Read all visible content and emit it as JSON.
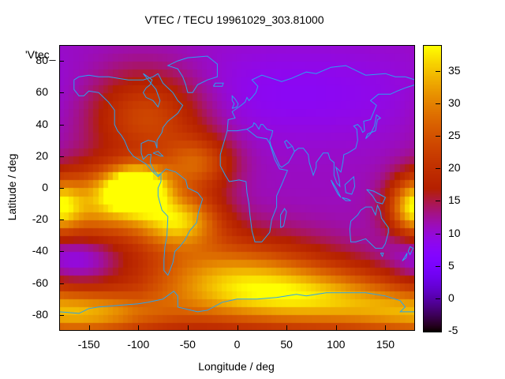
{
  "chart_data": {
    "type": "heatmap",
    "title": "VTEC / TECU 19961029_303.81000",
    "xlabel": "Longitude / deg",
    "ylabel": "Latitude / deg",
    "key_label": "'Vtec_",
    "xlim": [
      -180,
      180
    ],
    "ylim": [
      -90,
      90
    ],
    "xticks": [
      -150,
      -100,
      -50,
      0,
      50,
      100,
      150
    ],
    "yticks": [
      -80,
      -60,
      -40,
      -20,
      0,
      20,
      40,
      60,
      80
    ],
    "colorbar": {
      "min": -5,
      "max": 39,
      "ticks": [
        -5,
        0,
        5,
        10,
        15,
        20,
        25,
        30,
        35
      ],
      "palette": "gnuplot black-blue-violet-red-orange-yellow"
    },
    "grid": false,
    "field_features": [
      {
        "type": "background",
        "value": 11
      },
      {
        "type": "peak",
        "lon": -100,
        "lat": 0,
        "value": 31,
        "sigma_lon": 22,
        "sigma_lat": 10
      },
      {
        "type": "peak",
        "lon": -60,
        "lat": -20,
        "value": 23,
        "sigma_lon": 30,
        "sigma_lat": 12
      },
      {
        "type": "peak",
        "lon": -140,
        "lat": -10,
        "value": 20,
        "sigma_lon": 35,
        "sigma_lat": 16
      },
      {
        "type": "peak",
        "lon": 178,
        "lat": -12,
        "value": 19,
        "sigma_lon": 16,
        "sigma_lat": 12
      },
      {
        "type": "peak",
        "lon": 80,
        "lat": -70,
        "value": 20,
        "sigma_lon": 80,
        "sigma_lat": 14
      },
      {
        "type": "peak",
        "lon": -10,
        "lat": -55,
        "value": 18,
        "sigma_lon": 70,
        "sigma_lat": 18
      },
      {
        "type": "peak",
        "lon": -150,
        "lat": -80,
        "value": 18,
        "sigma_lon": 60,
        "sigma_lat": 10
      },
      {
        "type": "peak",
        "lon": -40,
        "lat": 15,
        "value": 14,
        "sigma_lon": 25,
        "sigma_lat": 12
      },
      {
        "type": "peak",
        "lon": -90,
        "lat": 45,
        "value": 13,
        "sigma_lon": 40,
        "sigma_lat": 20
      },
      {
        "type": "trough",
        "lon": -160,
        "lat": -45,
        "value": -6,
        "sigma_lon": 30,
        "sigma_lat": 12
      },
      {
        "type": "trough",
        "lon": 60,
        "lat": 60,
        "value": -3,
        "sigma_lon": 90,
        "sigma_lat": 20
      }
    ],
    "coastlines": [
      [
        [
          -165,
          68
        ],
        [
          -160,
          70
        ],
        [
          -150,
          71
        ],
        [
          -140,
          70
        ],
        [
          -130,
          70
        ],
        [
          -120,
          69
        ],
        [
          -110,
          68
        ],
        [
          -95,
          68
        ],
        [
          -85,
          70
        ],
        [
          -80,
          72
        ]
      ],
      [
        [
          -80,
          72
        ],
        [
          -75,
          66
        ],
        [
          -65,
          60
        ],
        [
          -60,
          55
        ],
        [
          -55,
          52
        ],
        [
          -60,
          47
        ],
        [
          -66,
          44
        ],
        [
          -70,
          42
        ],
        [
          -75,
          38
        ],
        [
          -76,
          35
        ],
        [
          -81,
          30
        ],
        [
          -81,
          25
        ],
        [
          -83,
          29
        ],
        [
          -90,
          30
        ],
        [
          -97,
          28
        ],
        [
          -97,
          22
        ],
        [
          -95,
          18
        ],
        [
          -90,
          21
        ],
        [
          -87,
          21
        ],
        [
          -88,
          16
        ],
        [
          -84,
          11
        ],
        [
          -80,
          8
        ],
        [
          -77,
          9
        ],
        [
          -80,
          7
        ]
      ],
      [
        [
          -80,
          7
        ],
        [
          -85,
          10
        ],
        [
          -92,
          15
        ],
        [
          -105,
          20
        ],
        [
          -110,
          24
        ],
        [
          -114,
          30
        ],
        [
          -117,
          33
        ],
        [
          -121,
          36
        ],
        [
          -124,
          40
        ],
        [
          -124,
          46
        ],
        [
          -124,
          49
        ],
        [
          -130,
          54
        ],
        [
          -135,
          57
        ],
        [
          -140,
          60
        ],
        [
          -150,
          61
        ],
        [
          -155,
          58
        ],
        [
          -160,
          58
        ],
        [
          -165,
          62
        ],
        [
          -165,
          68
        ]
      ],
      [
        [
          -77,
          9
        ],
        [
          -72,
          12
        ],
        [
          -62,
          10
        ],
        [
          -52,
          5
        ],
        [
          -50,
          0
        ],
        [
          -40,
          -3
        ],
        [
          -35,
          -7
        ],
        [
          -39,
          -15
        ],
        [
          -41,
          -22
        ],
        [
          -48,
          -27
        ],
        [
          -53,
          -33
        ],
        [
          -58,
          -37
        ],
        [
          -63,
          -40
        ],
        [
          -65,
          -47
        ],
        [
          -68,
          -52
        ],
        [
          -70,
          -55
        ],
        [
          -74,
          -52
        ],
        [
          -74,
          -45
        ],
        [
          -73,
          -37
        ],
        [
          -71,
          -30
        ],
        [
          -70,
          -18
        ],
        [
          -76,
          -14
        ],
        [
          -80,
          -5
        ],
        [
          -80,
          0
        ],
        [
          -77,
          4
        ],
        [
          -77,
          9
        ]
      ],
      [
        [
          -10,
          36
        ],
        [
          -17,
          21
        ],
        [
          -17,
          14
        ],
        [
          -12,
          8
        ],
        [
          -8,
          4
        ],
        [
          2,
          5
        ],
        [
          9,
          4
        ],
        [
          10,
          -3
        ],
        [
          12,
          -10
        ],
        [
          13,
          -17
        ],
        [
          15,
          -27
        ],
        [
          18,
          -34
        ],
        [
          25,
          -34
        ],
        [
          33,
          -28
        ],
        [
          35,
          -20
        ],
        [
          40,
          -12
        ],
        [
          40,
          -5
        ],
        [
          45,
          2
        ],
        [
          51,
          11
        ],
        [
          43,
          12
        ],
        [
          38,
          18
        ],
        [
          33,
          28
        ],
        [
          30,
          31
        ],
        [
          20,
          32
        ],
        [
          10,
          37
        ],
        [
          0,
          36
        ],
        [
          -10,
          36
        ]
      ],
      [
        [
          -10,
          36
        ],
        [
          -9,
          43
        ],
        [
          -2,
          44
        ],
        [
          -5,
          48
        ],
        [
          2,
          51
        ],
        [
          8,
          54
        ],
        [
          10,
          57
        ],
        [
          12,
          55
        ],
        [
          15,
          57
        ],
        [
          19,
          60
        ],
        [
          21,
          64
        ],
        [
          15,
          68
        ],
        [
          25,
          71
        ],
        [
          40,
          68
        ],
        [
          45,
          67
        ],
        [
          55,
          69
        ],
        [
          70,
          73
        ],
        [
          80,
          72
        ],
        [
          95,
          76
        ],
        [
          110,
          77
        ],
        [
          130,
          71
        ],
        [
          150,
          72
        ],
        [
          160,
          70
        ],
        [
          170,
          70
        ],
        [
          180,
          68
        ]
      ],
      [
        [
          10,
          37
        ],
        [
          13,
          38
        ],
        [
          16,
          39
        ],
        [
          17,
          41
        ],
        [
          19,
          40
        ],
        [
          22,
          37
        ],
        [
          24,
          40
        ],
        [
          26,
          40
        ],
        [
          30,
          37
        ],
        [
          36,
          36
        ],
        [
          35,
          33
        ],
        [
          33,
          30
        ],
        [
          34,
          27
        ],
        [
          38,
          21
        ],
        [
          43,
          14
        ],
        [
          45,
          13
        ],
        [
          52,
          16
        ],
        [
          58,
          23
        ],
        [
          56,
          26
        ],
        [
          50,
          30
        ],
        [
          48,
          29
        ],
        [
          51,
          25
        ],
        [
          55,
          26
        ]
      ],
      [
        [
          58,
          23
        ],
        [
          62,
          25
        ],
        [
          67,
          25
        ],
        [
          72,
          21
        ],
        [
          73,
          16
        ],
        [
          77,
          8
        ],
        [
          80,
          13
        ],
        [
          80,
          16
        ],
        [
          87,
          22
        ],
        [
          92,
          22
        ],
        [
          94,
          18
        ],
        [
          98,
          16
        ],
        [
          98,
          8
        ],
        [
          101,
          3
        ],
        [
          104,
          1
        ],
        [
          103,
          6
        ],
        [
          100,
          13
        ],
        [
          105,
          10
        ],
        [
          107,
          16
        ],
        [
          108,
          21
        ],
        [
          112,
          22
        ],
        [
          120,
          25
        ],
        [
          122,
          30
        ],
        [
          121,
          37
        ],
        [
          118,
          39
        ],
        [
          122,
          40
        ],
        [
          125,
          38
        ],
        [
          127,
          35
        ],
        [
          129,
          36
        ],
        [
          128,
          42
        ],
        [
          135,
          43
        ],
        [
          141,
          52
        ],
        [
          135,
          55
        ],
        [
          143,
          59
        ],
        [
          155,
          59
        ],
        [
          162,
          61
        ],
        [
          170,
          63
        ],
        [
          180,
          65
        ]
      ],
      [
        [
          115,
          -21
        ],
        [
          114,
          -26
        ],
        [
          115,
          -34
        ],
        [
          120,
          -34
        ],
        [
          130,
          -32
        ],
        [
          135,
          -35
        ],
        [
          140,
          -38
        ],
        [
          147,
          -38
        ],
        [
          150,
          -35
        ],
        [
          153,
          -28
        ],
        [
          153,
          -25
        ],
        [
          146,
          -19
        ],
        [
          145,
          -15
        ],
        [
          142,
          -11
        ],
        [
          140,
          -17
        ],
        [
          136,
          -12
        ],
        [
          130,
          -12
        ],
        [
          125,
          -14
        ],
        [
          122,
          -17
        ],
        [
          115,
          -21
        ]
      ],
      [
        [
          -180,
          -78
        ],
        [
          -160,
          -79
        ],
        [
          -150,
          -76
        ],
        [
          -140,
          -75
        ],
        [
          -120,
          -74
        ],
        [
          -100,
          -73
        ],
        [
          -90,
          -72
        ],
        [
          -75,
          -70
        ],
        [
          -64,
          -65
        ],
        [
          -60,
          -68
        ],
        [
          -60,
          -75
        ],
        [
          -40,
          -78
        ],
        [
          -30,
          -77
        ],
        [
          -15,
          -72
        ],
        [
          0,
          -70
        ],
        [
          20,
          -70
        ],
        [
          40,
          -69
        ],
        [
          60,
          -67
        ],
        [
          70,
          -68
        ],
        [
          90,
          -66
        ],
        [
          110,
          -66
        ],
        [
          130,
          -66
        ],
        [
          150,
          -68
        ],
        [
          165,
          -71
        ],
        [
          170,
          -75
        ],
        [
          165,
          -78
        ],
        [
          180,
          -78
        ]
      ],
      [
        [
          -50,
          60
        ],
        [
          -45,
          60
        ],
        [
          -40,
          65
        ],
        [
          -30,
          68
        ],
        [
          -20,
          70
        ],
        [
          -20,
          78
        ],
        [
          -30,
          83
        ],
        [
          -50,
          82
        ],
        [
          -60,
          80
        ],
        [
          -70,
          77
        ],
        [
          -60,
          75
        ],
        [
          -55,
          70
        ],
        [
          -52,
          65
        ],
        [
          -50,
          60
        ]
      ],
      [
        [
          -95,
          72
        ],
        [
          -90,
          68
        ],
        [
          -82,
          62
        ],
        [
          -78,
          55
        ],
        [
          -80,
          51
        ],
        [
          -85,
          55
        ],
        [
          -92,
          57
        ],
        [
          -95,
          60
        ],
        [
          -92,
          63
        ],
        [
          -88,
          65
        ],
        [
          -86,
          68
        ],
        [
          -95,
          72
        ]
      ],
      [
        [
          -5,
          50
        ],
        [
          0,
          51
        ],
        [
          1,
          53
        ],
        [
          -2,
          56
        ],
        [
          -5,
          58
        ],
        [
          -5,
          55
        ],
        [
          -3,
          53
        ],
        [
          -5,
          50
        ]
      ],
      [
        [
          130,
          31
        ],
        [
          132,
          34
        ],
        [
          136,
          35
        ],
        [
          140,
          36
        ],
        [
          141,
          40
        ],
        [
          142,
          43
        ],
        [
          145,
          44
        ],
        [
          141,
          46
        ],
        [
          139,
          39
        ],
        [
          135,
          34
        ],
        [
          130,
          31
        ]
      ],
      [
        [
          44,
          -25
        ],
        [
          47,
          -24
        ],
        [
          50,
          -15
        ],
        [
          48,
          -13
        ],
        [
          44,
          -17
        ],
        [
          44,
          -25
        ]
      ],
      [
        [
          95,
          5
        ],
        [
          100,
          0
        ],
        [
          105,
          -6
        ],
        [
          102,
          -4
        ],
        [
          97,
          2
        ],
        [
          95,
          5
        ]
      ],
      [
        [
          106,
          -6
        ],
        [
          112,
          -7
        ],
        [
          115,
          -8
        ],
        [
          110,
          -8
        ],
        [
          106,
          -6
        ]
      ],
      [
        [
          109,
          2
        ],
        [
          118,
          7
        ],
        [
          119,
          1
        ],
        [
          116,
          -4
        ],
        [
          110,
          -3
        ],
        [
          109,
          2
        ]
      ],
      [
        [
          131,
          -1
        ],
        [
          138,
          -2
        ],
        [
          144,
          -4
        ],
        [
          150,
          -6
        ],
        [
          147,
          -10
        ],
        [
          141,
          -9
        ],
        [
          137,
          -5
        ],
        [
          131,
          -1
        ]
      ],
      [
        [
          173,
          -40
        ],
        [
          175,
          -37
        ],
        [
          178,
          -38
        ],
        [
          175,
          -42
        ],
        [
          173,
          -40
        ]
      ],
      [
        [
          167,
          -46
        ],
        [
          171,
          -44
        ],
        [
          172,
          -41
        ],
        [
          168,
          -45
        ],
        [
          167,
          -46
        ]
      ],
      [
        [
          145,
          -41
        ],
        [
          148,
          -41
        ],
        [
          147,
          -43
        ],
        [
          145,
          -41
        ]
      ],
      [
        [
          -24,
          64
        ],
        [
          -15,
          64
        ],
        [
          -14,
          66
        ],
        [
          -22,
          66
        ],
        [
          -24,
          64
        ]
      ],
      [
        [
          -85,
          22
        ],
        [
          -80,
          23
        ],
        [
          -75,
          20
        ],
        [
          -77,
          20
        ],
        [
          -85,
          22
        ]
      ]
    ]
  }
}
